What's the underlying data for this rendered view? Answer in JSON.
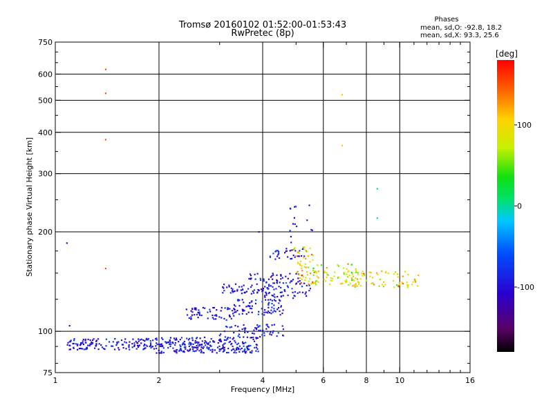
{
  "title": {
    "line1": "Tromsø 20160102 01:52:00-01:53:43",
    "line2": "RwPretec (8p)"
  },
  "stats": {
    "heading": "Phases",
    "o_line": "mean, sd,O: -92.8, 18.2",
    "x_line": "mean, sd,X:  93.3, 25.6"
  },
  "colorbar": {
    "unit_label": "[deg]",
    "ticks": [
      {
        "value": 100,
        "label": "100"
      },
      {
        "value": 0,
        "label": "0"
      },
      {
        "value": -100,
        "label": "-100"
      }
    ],
    "range": [
      -180,
      180
    ]
  },
  "chart_data": {
    "type": "scatter",
    "title": "Tromsø 20160102 01:52:00-01:53:43",
    "subtitle": "RwPretec (8p)",
    "xlabel": "Frequency [MHz]",
    "ylabel": "Stationary phase Virtual Height [km]",
    "xscale": "log",
    "yscale": "log",
    "xlim": [
      1,
      16
    ],
    "ylim": [
      75,
      750
    ],
    "x_ticks": [
      1,
      2,
      4,
      6,
      8,
      10,
      16
    ],
    "y_ticks": [
      75,
      100,
      200,
      300,
      400,
      500,
      600,
      750
    ],
    "x_grid": [
      2,
      4,
      6,
      8,
      10
    ],
    "y_grid": [
      100,
      200,
      300,
      400,
      500,
      600
    ],
    "grid": true,
    "color_variable": "Phase [deg]",
    "series": [
      {
        "mode": "O",
        "phase_mean": -92.8,
        "phase_sd": 18.2,
        "clusters": [
          {
            "x_range": [
              1.08,
              1.95
            ],
            "y_range": [
              88,
              95
            ],
            "count": 140
          },
          {
            "x_range": [
              1.95,
              3.9
            ],
            "y_range": [
              86,
              96
            ],
            "count": 260
          },
          {
            "x_range": [
              3.0,
              4.6
            ],
            "y_range": [
              95,
              105
            ],
            "count": 60
          },
          {
            "x_range": [
              2.4,
              3.3
            ],
            "y_range": [
              108,
              118
            ],
            "count": 60
          },
          {
            "x_range": [
              3.3,
              4.6
            ],
            "y_range": [
              112,
              125
            ],
            "count": 80
          },
          {
            "x_range": [
              3.0,
              4.2
            ],
            "y_range": [
              130,
              140
            ],
            "count": 50
          },
          {
            "x_range": [
              4.0,
              5.5
            ],
            "y_range": [
              126,
              140
            ],
            "count": 60
          },
          {
            "x_range": [
              3.6,
              5.2
            ],
            "y_range": [
              140,
              150
            ],
            "count": 45
          },
          {
            "x_range": [
              4.2,
              5.3
            ],
            "y_range": [
              165,
              178
            ],
            "count": 30
          },
          {
            "x_range": [
              4.8,
              5.6
            ],
            "y_range": [
              185,
              245
            ],
            "count": 15
          }
        ]
      },
      {
        "mode": "X",
        "phase_mean": 93.3,
        "phase_sd": 25.6,
        "clusters": [
          {
            "x_range": [
              5.0,
              7.5
            ],
            "y_range": [
              138,
              160
            ],
            "count": 90
          },
          {
            "x_range": [
              7.0,
              11.5
            ],
            "y_range": [
              136,
              152
            ],
            "count": 80
          },
          {
            "x_range": [
              4.8,
              5.6
            ],
            "y_range": [
              160,
              180
            ],
            "count": 25
          }
        ]
      }
    ],
    "outliers": [
      {
        "x": 1.4,
        "y": 620,
        "phase": 150
      },
      {
        "x": 1.4,
        "y": 525,
        "phase": 150
      },
      {
        "x": 1.4,
        "y": 380,
        "phase": 150
      },
      {
        "x": 1.4,
        "y": 155,
        "phase": 150
      },
      {
        "x": 6.8,
        "y": 520,
        "phase": 110
      },
      {
        "x": 6.8,
        "y": 365,
        "phase": 110
      },
      {
        "x": 8.6,
        "y": 270,
        "phase": 0
      },
      {
        "x": 8.6,
        "y": 220,
        "phase": 0
      },
      {
        "x": 1.08,
        "y": 185,
        "phase": -100
      },
      {
        "x": 1.1,
        "y": 104,
        "phase": -100
      },
      {
        "x": 3.9,
        "y": 200,
        "phase": -100
      }
    ]
  }
}
